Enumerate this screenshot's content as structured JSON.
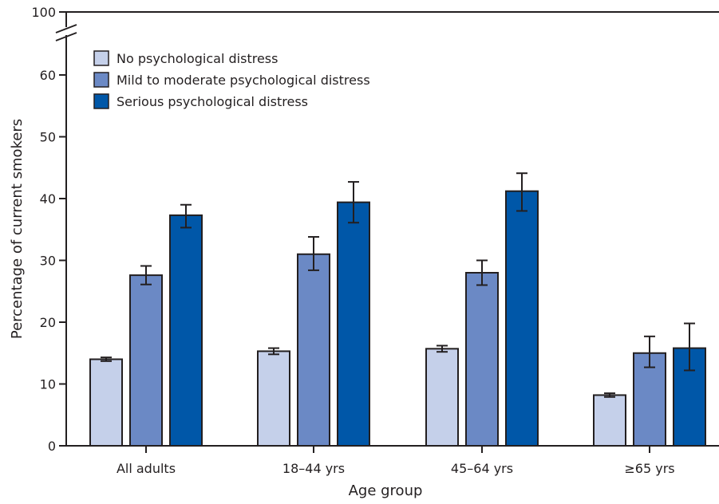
{
  "chart_data": {
    "type": "bar",
    "xlabel": "Age group",
    "ylabel": "Percentage of current smokers",
    "ylim": [
      0,
      100
    ],
    "y_axis_break": [
      60,
      100
    ],
    "y_ticks": [
      0,
      10,
      20,
      30,
      40,
      50,
      60,
      100
    ],
    "grid": false,
    "legend_position": "top-left",
    "categories": [
      "All adults",
      "18–44 yrs",
      "45–64 yrs",
      "≥65 yrs"
    ],
    "series": [
      {
        "name": "No psychological distress",
        "color": "#c5d0ea",
        "values": [
          14.0,
          15.3,
          15.7,
          8.2
        ],
        "error_low": [
          13.7,
          14.8,
          15.2,
          7.9
        ],
        "error_high": [
          14.3,
          15.8,
          16.2,
          8.5
        ]
      },
      {
        "name": "Mild to moderate psychological distress",
        "color": "#6b89c5",
        "values": [
          27.6,
          31.0,
          28.0,
          15.0
        ],
        "error_low": [
          26.1,
          28.4,
          26.0,
          12.7
        ],
        "error_high": [
          29.1,
          33.8,
          30.0,
          17.7
        ]
      },
      {
        "name": "Serious psychological distress",
        "color": "#0057a8",
        "values": [
          37.3,
          39.4,
          41.2,
          15.8
        ],
        "error_low": [
          35.3,
          36.1,
          38.0,
          12.2
        ],
        "error_high": [
          39.0,
          42.7,
          44.1,
          19.8
        ]
      }
    ]
  }
}
